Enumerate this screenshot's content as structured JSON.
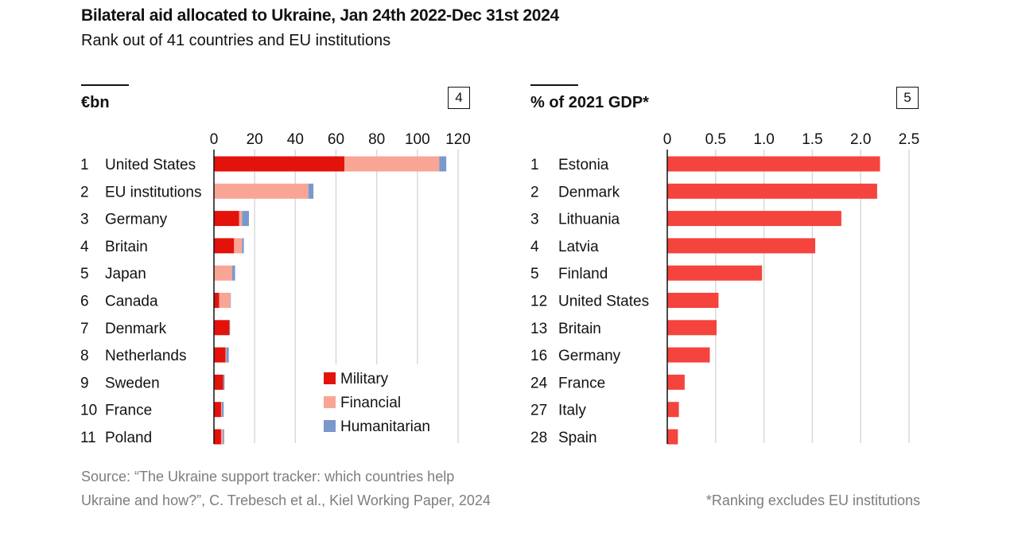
{
  "title": "Bilateral aid allocated to Ukraine, Jan 24th 2022-Dec 31st 2024",
  "subtitle": "Rank out of 41 countries and EU institutions",
  "source": [
    "Source: “The Ukraine support tracker: which countries help",
    "Ukraine and how?”, C. Trebesch et al., Kiel Working Paper, 2024"
  ],
  "footnote": "*Ranking excludes EU institutions",
  "chart_data": [
    {
      "type": "bar",
      "orientation": "horizontal",
      "stacked": true,
      "panel_number": "4",
      "unit_label": "€bn",
      "xlim": [
        0,
        120
      ],
      "ticks": [
        "0",
        "20",
        "40",
        "60",
        "80",
        "100",
        "120"
      ],
      "grid": true,
      "legend_position": "bottom-right",
      "ranks": [
        "1",
        "2",
        "3",
        "4",
        "5",
        "6",
        "7",
        "8",
        "9",
        "10",
        "11"
      ],
      "categories": [
        "United States",
        "EU institutions",
        "Germany",
        "Britain",
        "Japan",
        "Canada",
        "Denmark",
        "Netherlands",
        "Sweden",
        "France",
        "Poland"
      ],
      "series": [
        {
          "name": "Military",
          "color": "#e3120b",
          "values": [
            64.1,
            0,
            12.4,
            9.9,
            0,
            2.6,
            7.6,
            5.7,
            4.6,
            3.5,
            3.5
          ]
        },
        {
          "name": "Financial",
          "color": "#f9a595",
          "values": [
            46.6,
            46.4,
            1.4,
            3.9,
            9.0,
            5.5,
            0,
            0.4,
            0,
            0.4,
            0.9
          ]
        },
        {
          "name": "Humanitarian",
          "color": "#7b98cc",
          "values": [
            3.5,
            2.5,
            3.4,
            0.9,
            1.4,
            0.2,
            0.3,
            1.2,
            0.6,
            0.9,
            0.6
          ]
        }
      ]
    },
    {
      "type": "bar",
      "orientation": "horizontal",
      "panel_number": "5",
      "unit_label": "% of 2021 GDP*",
      "xlim": [
        0,
        2.5
      ],
      "ticks": [
        "0",
        "0.5",
        "1.0",
        "1.5",
        "2.0",
        "2.5"
      ],
      "grid": true,
      "color": "#f5433d",
      "ranks": [
        "1",
        "2",
        "3",
        "4",
        "5",
        "12",
        "13",
        "16",
        "24",
        "27",
        "28"
      ],
      "categories": [
        "Estonia",
        "Denmark",
        "Lithuania",
        "Latvia",
        "Finland",
        "United States",
        "Britain",
        "Germany",
        "France",
        "Italy",
        "Spain"
      ],
      "values": [
        2.2,
        2.17,
        1.8,
        1.53,
        0.98,
        0.53,
        0.51,
        0.44,
        0.18,
        0.12,
        0.11
      ]
    }
  ]
}
